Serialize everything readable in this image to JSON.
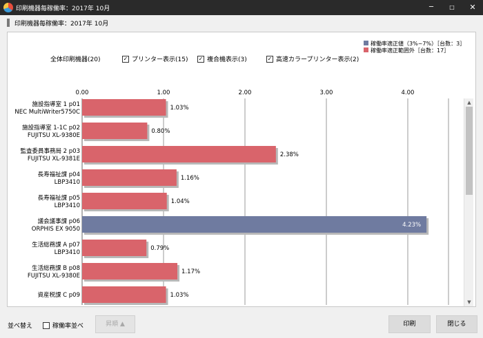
{
  "window": {
    "title": "印刷機器毎稼働率：2017年 10月",
    "min_glyph": "─",
    "max_glyph": "□",
    "close_glyph": "✕",
    "app_icon": "pie-chart-icon"
  },
  "header": {
    "title": "印刷機器毎稼働率：2017年 10月"
  },
  "legend": [
    {
      "label": "稼働率適正値（3%~7%）［台数：3］",
      "color": "#6f7ba0"
    },
    {
      "label": "稼働率適正範囲外［台数：17］",
      "color": "#d9646b"
    }
  ],
  "filters": {
    "all_label": "全体印刷機器(20)",
    "printer_label": "プリンター表示(15)",
    "printer_checked": true,
    "mfp_label": "複合機表示(3)",
    "mfp_checked": true,
    "color_label": "高速カラープリンター表示(2)",
    "color_checked": true,
    "check_glyph": "✓"
  },
  "chart_data": {
    "type": "bar",
    "orientation": "horizontal",
    "xlim": [
      0,
      4.5
    ],
    "x_ticks": [
      "0.00",
      "1.00",
      "2.00",
      "3.00",
      "4.00"
    ],
    "grid": true,
    "categories": [
      [
        "施設指導室 1 p01",
        "NEC MultiWriter5750C"
      ],
      [
        "施設指導室 1-1C p02",
        "FUJITSU XL-9380E"
      ],
      [
        "監査委員事務局 2 p03",
        "FUJITSU XL-9381E"
      ],
      [
        "長寿福祉課 p04",
        "LBP3410"
      ],
      [
        "長寿福祉課 p05",
        "LBP3410"
      ],
      [
        "議会議事課 p06",
        "ORPHIS EX 9050"
      ],
      [
        "生活総務課 A p07",
        "LBP3410"
      ],
      [
        "生活総務課 B p08",
        "FUJITSU XL-9380E"
      ],
      [
        "資産税課 C p09",
        ""
      ]
    ],
    "values": [
      1.03,
      0.8,
      2.38,
      1.16,
      1.04,
      4.23,
      0.79,
      1.17,
      1.03
    ],
    "value_labels": [
      "1.03%",
      "0.80%",
      "2.38%",
      "1.16%",
      "1.04%",
      "4.23%",
      "0.79%",
      "1.17%",
      "1.03%"
    ],
    "in_range": [
      false,
      false,
      false,
      false,
      false,
      true,
      false,
      false,
      false
    ],
    "colors": {
      "in_range": "#6f7ba0",
      "out_of_range": "#d9646b"
    }
  },
  "footer": {
    "sort_label": "並べ替え",
    "sort_option_label": "稼働率並べ",
    "sort_option_checked": false,
    "order_button": "昇順 ▲",
    "print_button": "印刷",
    "close_button": "閉じる"
  },
  "scrollbar": {
    "up_glyph": "▲",
    "down_glyph": "▼"
  }
}
